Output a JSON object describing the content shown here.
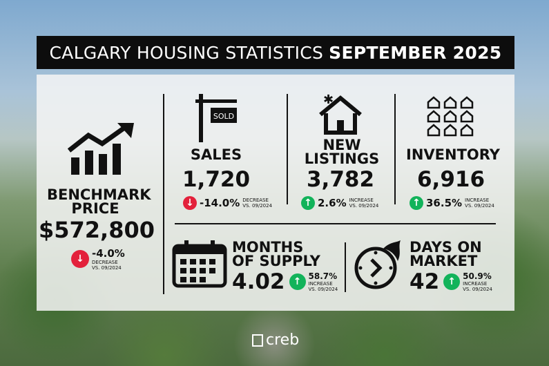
{
  "title": {
    "main": "CALGARY HOUSING STATISTICS",
    "period": "SEPTEMBER 2025"
  },
  "colors": {
    "increase": "#12b35a",
    "decrease": "#e3213b"
  },
  "benchmark": {
    "label_line1": "BENCHMARK",
    "label_line2": "PRICE",
    "value": "$572,800",
    "change": "-4.0%",
    "direction": "DECREASE",
    "comparison": "VS. 09/2024",
    "icon": "bar-chart-up-icon"
  },
  "sales": {
    "label": "SALES",
    "value": "1,720",
    "change": "-14.0%",
    "direction": "DECREASE",
    "comparison": "VS. 09/2024",
    "icon": "sold-sign-icon",
    "sign_text": "SOLD"
  },
  "new_listings": {
    "label_line1": "NEW",
    "label_line2": "LISTINGS",
    "value": "3,782",
    "change": "2.6%",
    "direction": "INCREASE",
    "comparison": "VS. 09/2024",
    "icon": "new-house-icon"
  },
  "inventory": {
    "label": "INVENTORY",
    "value": "6,916",
    "change": "36.5%",
    "direction": "INCREASE",
    "comparison": "VS. 09/2024",
    "icon": "houses-grid-icon"
  },
  "months_supply": {
    "label_line1": "MONTHS",
    "label_line2": "OF SUPPLY",
    "value": "4.02",
    "change": "58.7%",
    "direction": "INCREASE",
    "comparison": "VS. 09/2024",
    "icon": "calendar-icon"
  },
  "days_on_market": {
    "label_line1": "DAYS ON",
    "label_line2": "MARKET",
    "value": "42",
    "change": "50.9%",
    "direction": "INCREASE",
    "comparison": "VS. 09/2024",
    "icon": "fast-clock-icon"
  },
  "footer": {
    "logo": "creb"
  }
}
